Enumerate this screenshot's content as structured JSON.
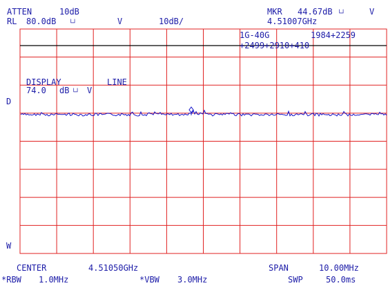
{
  "header": {
    "atten_label": "ATTEN",
    "atten_value": "10dB",
    "rl_label": "RL",
    "rl_value": "80.0dB",
    "rl_unit": "V",
    "scale": "10dB/",
    "mkr_label": "MKR",
    "mkr_value": "44.67dB",
    "mkr_unit": "V",
    "mkr_freq": "4.51007GHz"
  },
  "annotation": {
    "band": "1G-40G",
    "line1_right": "1984+2259",
    "line2": "+2499+2910+410"
  },
  "display_line": {
    "title_left": "DISPLAY",
    "title_right": "LINE",
    "value": "74.0",
    "unit_db": "dB",
    "unit_v": "V"
  },
  "left_marks": {
    "d": "D",
    "w": "W"
  },
  "footer": {
    "center_label": "CENTER",
    "center_value": "4.51050GHz",
    "span_label": "SPAN",
    "span_value": "10.00MHz",
    "rbw_label": "*RBW",
    "rbw_value": "1.0MHz",
    "vbw_label": "*VBW",
    "vbw_value": "3.0MHz",
    "swp_label": "SWP",
    "swp_value": "50.0ms"
  },
  "colors": {
    "grid": "#e02020",
    "text": "#1c1ca8",
    "trace": "#1414c8",
    "display_line": "#000000",
    "background": "#ffffff"
  }
}
